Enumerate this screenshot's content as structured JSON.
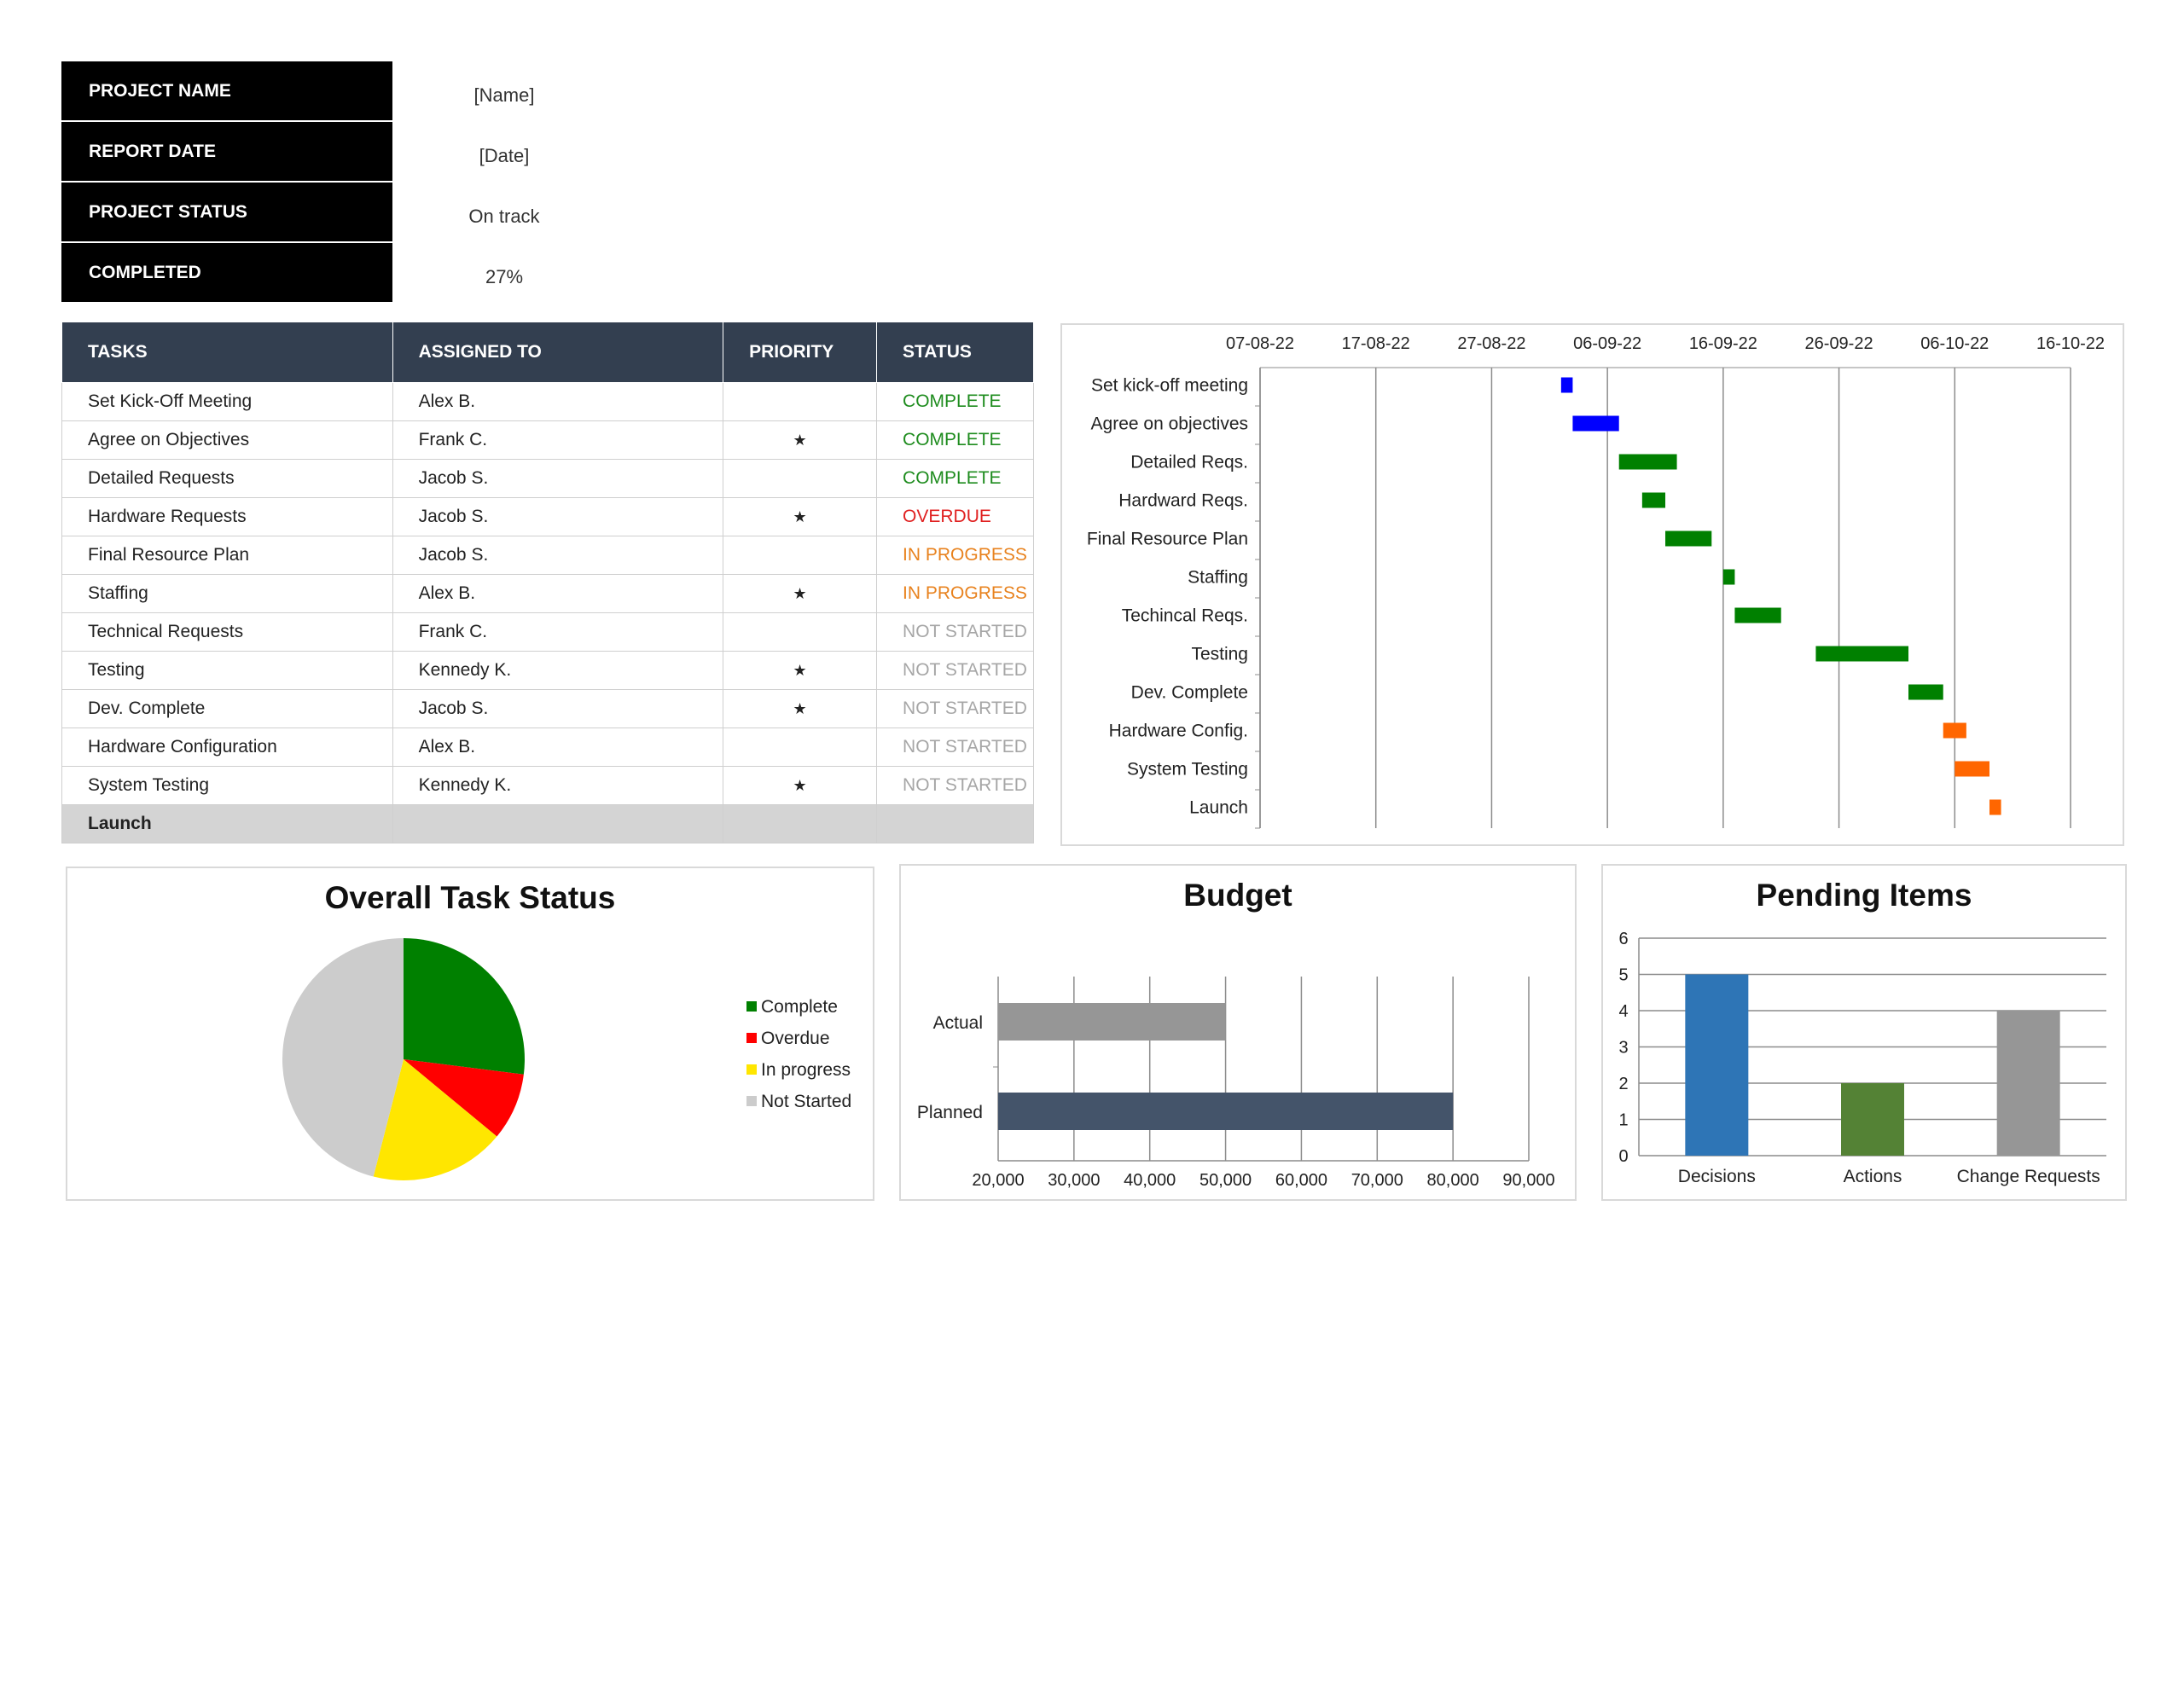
{
  "summary": [
    {
      "label": "PROJECT NAME",
      "value": "[Name]"
    },
    {
      "label": "REPORT DATE",
      "value": "[Date]"
    },
    {
      "label": "PROJECT STATUS",
      "value": "On track"
    },
    {
      "label": "COMPLETED",
      "value": "27%"
    }
  ],
  "task_table": {
    "headers": [
      "TASKS",
      "ASSIGNED TO",
      "PRIORITY",
      "STATUS"
    ],
    "rows": [
      {
        "task": "Set Kick-Off Meeting",
        "assigned": "Alex B.",
        "priority": "",
        "status": "COMPLETE"
      },
      {
        "task": "Agree on Objectives",
        "assigned": "Frank C.",
        "priority": "★",
        "status": "COMPLETE"
      },
      {
        "task": "Detailed Requests",
        "assigned": "Jacob S.",
        "priority": "",
        "status": "COMPLETE"
      },
      {
        "task": "Hardware Requests",
        "assigned": "Jacob S.",
        "priority": "★",
        "status": "OVERDUE"
      },
      {
        "task": "Final Resource Plan",
        "assigned": "Jacob S.",
        "priority": "",
        "status": "IN PROGRESS"
      },
      {
        "task": "Staffing",
        "assigned": "Alex B.",
        "priority": "★",
        "status": "IN PROGRESS"
      },
      {
        "task": "Technical Requests",
        "assigned": "Frank C.",
        "priority": "",
        "status": "NOT STARTED"
      },
      {
        "task": "Testing",
        "assigned": "Kennedy K.",
        "priority": "★",
        "status": "NOT STARTED"
      },
      {
        "task": "Dev. Complete",
        "assigned": "Jacob S.",
        "priority": "★",
        "status": "NOT STARTED"
      },
      {
        "task": "Hardware Configuration",
        "assigned": "Alex B.",
        "priority": "",
        "status": "NOT STARTED"
      },
      {
        "task": "System Testing",
        "assigned": "Kennedy K.",
        "priority": "★",
        "status": "NOT STARTED"
      },
      {
        "task": "Launch",
        "assigned": "",
        "priority": "",
        "status": ""
      }
    ],
    "status_colors": {
      "COMPLETE": "#1e8c1e",
      "OVERDUE": "#e02020",
      "IN PROGRESS": "#e8821e",
      "NOT STARTED": "#a6a6a6"
    }
  },
  "chart_data": [
    {
      "type": "bar",
      "subtype": "gantt",
      "title": "",
      "x_ticks": [
        "07-08-22",
        "17-08-22",
        "27-08-22",
        "06-09-22",
        "16-09-22",
        "26-09-22",
        "06-10-22",
        "16-10-22"
      ],
      "x_range": [
        "2022-08-07",
        "2022-10-16"
      ],
      "grid": true,
      "tasks": [
        {
          "name": "Set kick-off meeting",
          "start": "2022-09-02",
          "end": "2022-09-03",
          "color": "#0000ff"
        },
        {
          "name": "Agree on objectives",
          "start": "2022-09-03",
          "end": "2022-09-07",
          "color": "#0000ff"
        },
        {
          "name": "Detailed Reqs.",
          "start": "2022-09-07",
          "end": "2022-09-12",
          "color": "#008000"
        },
        {
          "name": "Hardward Reqs.",
          "start": "2022-09-09",
          "end": "2022-09-11",
          "color": "#008000"
        },
        {
          "name": "Final Resource Plan",
          "start": "2022-09-11",
          "end": "2022-09-15",
          "color": "#008000"
        },
        {
          "name": "Staffing",
          "start": "2022-09-16",
          "end": "2022-09-17",
          "color": "#008000"
        },
        {
          "name": "Techincal Reqs.",
          "start": "2022-09-17",
          "end": "2022-09-21",
          "color": "#008000"
        },
        {
          "name": "Testing",
          "start": "2022-09-24",
          "end": "2022-10-02",
          "color": "#008000"
        },
        {
          "name": "Dev. Complete",
          "start": "2022-10-02",
          "end": "2022-10-05",
          "color": "#008000"
        },
        {
          "name": "Hardware Config.",
          "start": "2022-10-05",
          "end": "2022-10-07",
          "color": "#ff6600"
        },
        {
          "name": "System Testing",
          "start": "2022-10-06",
          "end": "2022-10-09",
          "color": "#ff6600"
        },
        {
          "name": "Launch",
          "start": "2022-10-09",
          "end": "2022-10-10",
          "color": "#ff6600"
        }
      ]
    },
    {
      "type": "pie",
      "title": "Overall Task Status",
      "legend": "right",
      "slices": [
        {
          "label": "Complete",
          "value": 27,
          "color": "#008000"
        },
        {
          "label": "Overdue",
          "value": 9,
          "color": "#ff0000"
        },
        {
          "label": "In progress",
          "value": 18,
          "color": "#ffe600"
        },
        {
          "label": "Not Started",
          "value": 46,
          "color": "#cccccc"
        }
      ]
    },
    {
      "type": "bar",
      "orientation": "horizontal",
      "title": "Budget",
      "categories": [
        "Actual",
        "Planned"
      ],
      "values": [
        50000,
        80000
      ],
      "colors": [
        "#969696",
        "#44546a"
      ],
      "xlim": [
        20000,
        90000
      ],
      "x_ticks": [
        "20,000",
        "30,000",
        "40,000",
        "50,000",
        "60,000",
        "70,000",
        "80,000",
        "90,000"
      ],
      "grid": true
    },
    {
      "type": "bar",
      "title": "Pending Items",
      "categories": [
        "Decisions",
        "Actions",
        "Change Requests"
      ],
      "values": [
        5,
        2,
        4
      ],
      "colors": [
        "#2e75b6",
        "#548235",
        "#969696"
      ],
      "ylim": [
        0,
        6
      ],
      "y_ticks": [
        "0",
        "1",
        "2",
        "3",
        "4",
        "5",
        "6"
      ],
      "grid": true
    }
  ]
}
